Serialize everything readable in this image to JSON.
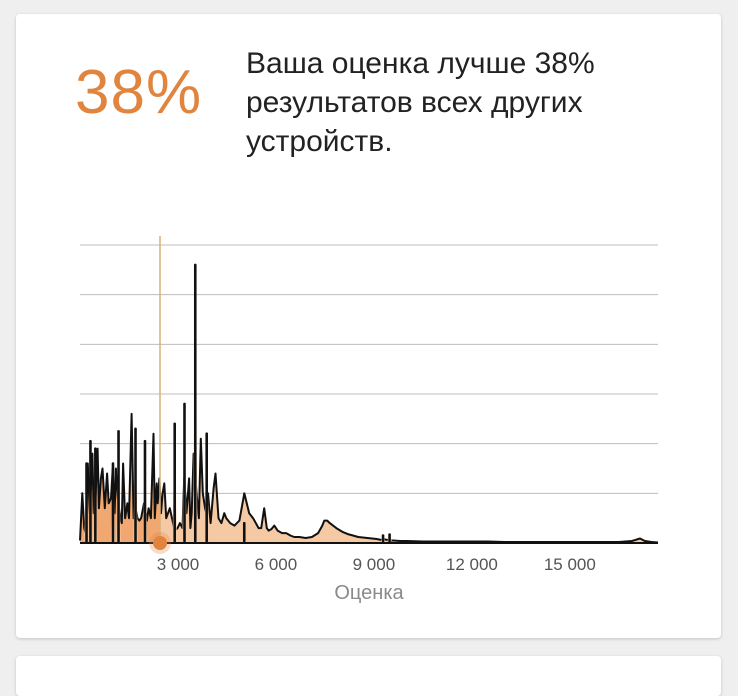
{
  "score_card": {
    "percentile_value": "38%",
    "summary_text": "Ваша оценка лучше 38% результатов всех других устройств."
  },
  "colors": {
    "accent": "#e0843e",
    "area_fill": "#f5c9a4",
    "area_fill_below": "#f0a770",
    "line": "#111111",
    "marker_line": "#d9b07a",
    "grid": "#bdbdbd"
  },
  "chart_data": {
    "type": "area",
    "xlabel": "Оценка",
    "ylabel": "",
    "x_ticks": [
      {
        "value": 3000,
        "label": "3 000"
      },
      {
        "value": 6000,
        "label": "6 000"
      },
      {
        "value": 9000,
        "label": "9 000"
      },
      {
        "value": 12000,
        "label": "12 000"
      },
      {
        "value": 15000,
        "label": "15 000"
      }
    ],
    "xlim": [
      0,
      17700
    ],
    "ylim": [
      0,
      6
    ],
    "gridlines_y": [
      1,
      2,
      3,
      4,
      5,
      6
    ],
    "grid": true,
    "user_score": 2450,
    "user_percentile": 38,
    "x": [
      0,
      70,
      130,
      170,
      240,
      300,
      345,
      380,
      420,
      470,
      540,
      580,
      640,
      690,
      760,
      830,
      880,
      950,
      1000,
      1060,
      1100,
      1170,
      1240,
      1280,
      1320,
      1380,
      1450,
      1500,
      1580,
      1640,
      1700,
      1760,
      1820,
      1870,
      1960,
      2050,
      2100,
      2170,
      2250,
      2290,
      2350,
      2380,
      2430,
      2480,
      2530,
      2580,
      2640,
      2750,
      2900,
      2990,
      3060,
      3140,
      3190,
      3260,
      3340,
      3380,
      3420,
      3480,
      3570,
      3640,
      3700,
      3760,
      3830,
      3870,
      3920,
      4000,
      4090,
      4150,
      4240,
      4330,
      4420,
      4480,
      4600,
      4730,
      4880,
      5030,
      5180,
      5300,
      5470,
      5550,
      5640,
      5720,
      5780,
      5860,
      5950,
      6050,
      6190,
      6310,
      6370,
      6440,
      6560,
      6720,
      6910,
      7100,
      7290,
      7420,
      7480,
      7570,
      7650,
      7850,
      8050,
      8200,
      8360,
      8520,
      8800,
      9090,
      9230,
      9280,
      9350,
      9420,
      9480,
      9600,
      9800,
      10000,
      10500,
      11000,
      11500,
      11800,
      11900,
      12000,
      12200,
      12500,
      13000,
      13300,
      13400,
      13500,
      14000,
      14500,
      15000,
      16000,
      16500,
      16900,
      17150,
      17300,
      17500,
      17700
    ],
    "y": [
      0.05,
      1.0,
      0.3,
      0.2,
      1.6,
      0.6,
      1.3,
      1.8,
      0.6,
      0.8,
      1.9,
      0.7,
      1.3,
      1.5,
      0.7,
      1.4,
      0.8,
      0.9,
      1.5,
      0.6,
      1.5,
      0.8,
      0.5,
      0.4,
      1.6,
      0.5,
      0.8,
      0.5,
      2.6,
      0.5,
      0.7,
      0.5,
      0.45,
      0.5,
      0.8,
      0.45,
      0.7,
      0.5,
      2.2,
      0.5,
      1.2,
      0.8,
      1.3,
      0.6,
      1.0,
      1.2,
      0.5,
      0.7,
      0.25,
      0.3,
      0.4,
      0.3,
      1.3,
      0.6,
      1.3,
      0.3,
      0.6,
      1.8,
      1.0,
      0.5,
      2.1,
      1.0,
      0.7,
      0.6,
      1.0,
      0.4,
      1.1,
      1.4,
      0.5,
      0.4,
      0.6,
      0.5,
      0.4,
      0.35,
      0.45,
      1.0,
      0.6,
      0.5,
      0.3,
      0.3,
      0.7,
      0.3,
      0.25,
      0.28,
      0.35,
      0.25,
      0.2,
      0.2,
      0.18,
      0.15,
      0.12,
      0.12,
      0.1,
      0.12,
      0.2,
      0.35,
      0.45,
      0.45,
      0.4,
      0.3,
      0.22,
      0.18,
      0.15,
      0.12,
      0.1,
      0.08,
      0.06,
      0.06,
      0.07,
      0.06,
      0.05,
      0.05,
      0.04,
      0.04,
      0.03,
      0.03,
      0.03,
      0.03,
      0.03,
      0.03,
      0.03,
      0.03,
      0.02,
      0.02,
      0.02,
      0.02,
      0.02,
      0.02,
      0.02,
      0.02,
      0.02,
      0.04,
      0.09,
      0.04,
      0.02,
      0.01
    ],
    "spikes": [
      {
        "x": 200,
        "y": 1.6
      },
      {
        "x": 320,
        "y": 2.05
      },
      {
        "x": 470,
        "y": 1.9
      },
      {
        "x": 1010,
        "y": 1.6
      },
      {
        "x": 1180,
        "y": 2.25
      },
      {
        "x": 1700,
        "y": 2.3
      },
      {
        "x": 1990,
        "y": 2.05
      },
      {
        "x": 2900,
        "y": 2.4
      },
      {
        "x": 3200,
        "y": 2.8
      },
      {
        "x": 3530,
        "y": 5.6
      },
      {
        "x": 3880,
        "y": 2.2
      },
      {
        "x": 5030,
        "y": 0.4
      },
      {
        "x": 9280,
        "y": 0.15
      },
      {
        "x": 9480,
        "y": 0.17
      }
    ]
  }
}
